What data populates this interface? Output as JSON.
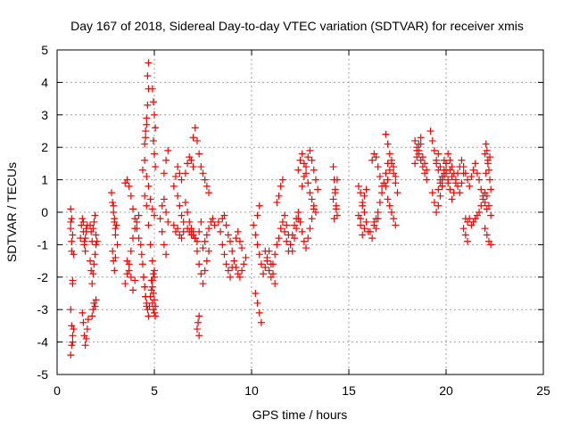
{
  "chart_data": {
    "type": "scatter",
    "title": "Day 167 of 2018, Sidereal Day-to-day VTEC variation (SDTVAR) for receiver xmis",
    "xlabel": "GPS time / hours",
    "ylabel": "SDTVAR / TECUs",
    "xlim": [
      0,
      25
    ],
    "ylim": [
      -5,
      5
    ],
    "xticks": [
      0,
      5,
      10,
      15,
      20,
      25
    ],
    "yticks": [
      -5,
      -4,
      -3,
      -2,
      -1,
      0,
      1,
      2,
      3,
      4,
      5
    ],
    "grid": true,
    "marker": "+",
    "color": "#ff0000",
    "series": [
      {
        "name": "SDTVAR",
        "x": [
          0.7,
          0.7,
          0.75,
          0.75,
          0.8,
          0.8,
          0.7,
          0.75,
          0.8,
          0.7,
          0.75,
          0.8,
          0.85,
          0.7,
          0.75,
          0.8,
          0.85,
          1.2,
          1.25,
          1.3,
          1.35,
          1.4,
          1.45,
          1.5,
          1.3,
          1.35,
          1.4,
          1.45,
          1.5,
          1.55,
          1.6,
          1.35,
          1.4,
          1.45,
          1.5,
          1.55,
          1.7,
          1.75,
          1.8,
          1.85,
          1.9,
          1.95,
          2.0,
          1.8,
          1.85,
          1.9,
          1.95,
          2.0,
          1.7,
          1.75,
          1.8,
          1.85,
          1.9,
          1.95,
          2.0,
          2.05,
          2.8,
          2.85,
          2.9,
          2.95,
          3.0,
          2.85,
          2.9,
          2.95,
          3.0,
          3.1,
          2.9,
          2.95,
          3.0,
          3.05,
          3.5,
          3.6,
          3.7,
          3.8,
          3.9,
          4.0,
          4.1,
          4.2,
          3.6,
          3.7,
          3.8,
          3.9,
          4.0,
          3.5,
          3.6,
          3.7,
          3.8,
          3.9,
          4.0,
          4.1,
          4.2,
          4.3,
          4.35,
          4.4,
          4.45,
          4.5,
          4.55,
          4.6,
          4.65,
          4.7,
          4.75,
          4.8,
          4.85,
          4.9,
          4.95,
          5.0,
          4.4,
          4.5,
          4.6,
          4.7,
          4.8,
          4.9,
          5.0,
          4.55,
          4.6,
          4.65,
          4.7,
          4.5,
          4.55,
          4.6,
          4.65,
          4.7,
          4.5,
          4.6,
          4.7,
          4.8,
          4.9,
          5.0,
          4.45,
          4.5,
          4.55,
          4.6,
          4.9,
          4.95,
          5.0,
          5.05,
          4.95,
          5.0,
          5.05,
          4.9,
          4.95,
          5.0,
          5.05,
          4.85,
          4.9,
          4.95,
          5.0,
          5.05,
          5.3,
          5.4,
          5.5,
          5.6,
          5.7,
          5.5,
          5.6,
          5.7,
          5.4,
          5.5,
          5.6,
          6.0,
          6.1,
          6.2,
          6.3,
          6.4,
          6.2,
          6.3,
          6.4,
          6.5,
          6.0,
          6.1,
          6.2,
          6.3,
          6.4,
          6.5,
          6.6,
          6.7,
          6.8,
          6.9,
          7.0,
          6.7,
          6.8,
          6.9,
          7.0,
          7.1,
          6.6,
          6.7,
          6.8,
          6.9,
          7.0,
          7.1,
          7.0,
          7.1,
          7.2,
          7.3,
          7.4,
          7.5,
          7.6,
          7.7,
          7.8,
          7.1,
          7.2,
          7.3,
          7.4,
          7.5,
          7.6,
          7.7,
          7.8,
          7.2,
          7.3,
          7.4,
          7.2,
          7.3,
          7.25,
          7.3,
          7.5,
          7.6,
          7.7,
          7.8,
          7.9,
          8.0,
          8.1,
          8.3,
          8.4,
          8.5,
          8.6,
          8.7,
          8.8,
          8.9,
          9.0,
          8.5,
          8.6,
          8.7,
          8.8,
          8.9,
          9.0,
          9.1,
          9.2,
          9.3,
          9.4,
          9.5,
          9.6,
          9.7,
          9.2,
          9.3,
          9.4,
          9.5,
          10.1,
          10.2,
          10.3,
          10.4,
          10.5,
          10.6,
          10.7,
          10.8,
          10.9,
          11.0,
          11.1,
          11.2,
          10.2,
          10.3,
          10.4,
          10.5,
          10.3,
          10.4,
          10.7,
          10.8,
          10.9,
          11.0,
          11.1,
          11.2,
          11.3,
          11.4,
          11.5,
          11.6,
          11.7,
          11.8,
          11.9,
          12.0,
          12.1,
          12.2,
          12.3,
          12.4,
          11.3,
          11.4,
          11.5,
          11.6,
          11.7,
          11.8,
          11.9,
          12.0,
          12.1,
          12.2,
          12.3,
          12.4,
          12.4,
          12.5,
          12.6,
          12.7,
          12.8,
          12.9,
          13.0,
          13.1,
          13.2,
          13.3,
          12.5,
          12.6,
          12.7,
          12.8,
          12.9,
          13.0,
          13.1,
          13.2,
          12.6,
          12.7,
          12.8,
          12.9,
          13.0,
          13.1,
          13.2,
          13.3,
          13.4,
          14.2,
          14.25,
          14.3,
          14.35,
          14.4,
          14.2,
          14.3,
          14.4,
          14.25,
          14.35,
          15.5,
          15.6,
          15.7,
          15.8,
          15.9,
          16.0,
          15.6,
          15.7,
          15.8,
          15.9,
          15.5,
          15.6,
          15.7,
          15.8,
          16.1,
          16.2,
          16.3,
          16.4,
          16.5,
          16.6,
          16.7,
          16.8,
          16.9,
          17.0,
          16.2,
          16.3,
          16.4,
          16.5,
          16.6,
          16.7,
          16.3,
          16.4,
          16.5,
          16.9,
          17.0,
          17.1,
          17.2,
          17.3,
          17.4,
          17.5,
          17.0,
          17.1,
          17.2,
          17.3,
          17.4,
          16.9,
          17.0,
          17.1,
          17.2,
          17.3,
          17.4,
          18.4,
          18.5,
          18.6,
          18.7,
          18.8,
          18.9,
          19.0,
          18.5,
          18.6,
          18.7,
          18.8,
          18.9,
          19.0,
          18.4,
          18.5,
          18.6,
          18.7,
          19.2,
          19.3,
          19.4,
          19.5,
          19.6,
          19.7,
          19.8,
          19.9,
          20.0,
          20.1,
          20.2,
          20.3,
          20.4,
          20.5,
          20.6,
          20.7,
          20.8,
          20.9,
          19.3,
          19.4,
          19.5,
          19.6,
          19.7,
          19.8,
          19.9,
          20.0,
          20.1,
          20.2,
          20.3,
          20.4,
          20.5,
          20.6,
          20.7,
          19.5,
          19.6,
          19.7,
          19.8,
          19.9,
          20.0,
          20.1,
          20.2,
          20.3,
          19.6,
          19.7,
          19.8,
          19.9,
          20.0,
          20.8,
          20.9,
          21.0,
          21.1,
          21.2,
          21.3,
          21.4,
          21.5,
          21.6,
          21.7,
          21.8,
          21.9,
          22.0,
          22.1,
          21.0,
          21.1,
          21.2,
          21.3,
          21.4,
          21.5,
          21.6,
          21.7,
          21.8,
          21.9,
          22.0,
          20.9,
          21.0,
          21.1,
          22.0,
          22.05,
          22.1,
          22.15,
          22.2,
          22.25,
          22.3,
          22.0,
          22.1,
          22.2,
          22.3,
          22.1,
          22.2,
          22.3,
          22.05,
          22.15,
          22.25
        ],
        "y": [
          0.1,
          -0.3,
          -0.9,
          -1.2,
          -2.1,
          -2.2,
          -3.0,
          -3.5,
          -4.0,
          -4.4,
          -4.1,
          -3.8,
          -3.6,
          -0.5,
          -0.2,
          -0.7,
          -1.3,
          -0.8,
          -0.4,
          -0.2,
          -0.6,
          -1.0,
          -0.8,
          -0.5,
          -3.1,
          -3.4,
          -3.8,
          -4.1,
          -3.9,
          -3.6,
          -3.3,
          -0.3,
          -0.9,
          -1.2,
          -0.6,
          -0.4,
          -1.5,
          -1.8,
          -2.2,
          -1.9,
          -1.6,
          -1.3,
          -1.0,
          -3.2,
          -3.0,
          -2.8,
          -2.9,
          -2.7,
          -0.4,
          -0.6,
          -0.9,
          -0.5,
          -0.3,
          -0.1,
          -0.7,
          -0.9,
          0.6,
          0.3,
          0.0,
          -0.3,
          -0.7,
          -1.2,
          -1.5,
          -1.8,
          -1.4,
          -1.0,
          0.2,
          -0.2,
          -0.5,
          -0.4,
          0.9,
          1.0,
          0.8,
          0.5,
          0.1,
          -0.2,
          -0.5,
          -0.8,
          -1.5,
          -1.8,
          -2.0,
          -2.4,
          -2.1,
          -2.2,
          -1.9,
          -1.6,
          -1.2,
          -0.8,
          -0.5,
          -0.3,
          -0.1,
          -1.0,
          -1.3,
          -1.6,
          -2.0,
          -2.3,
          -2.6,
          -2.8,
          -3.0,
          -3.2,
          -2.9,
          -2.6,
          -2.4,
          -2.1,
          -1.9,
          -1.8,
          1.3,
          1.6,
          1.1,
          0.8,
          0.4,
          0.1,
          -0.1,
          2.5,
          2.9,
          3.3,
          3.8,
          2.1,
          2.3,
          2.7,
          4.2,
          4.6,
          0.5,
          0.2,
          -0.4,
          -1.0,
          -1.5,
          -2.0,
          -2.0,
          -2.3,
          -2.6,
          -2.9,
          3.8,
          3.4,
          3.0,
          2.6,
          2.2,
          1.8,
          1.4,
          -2.8,
          -3.0,
          -3.1,
          -3.2,
          -2.1,
          -2.3,
          -2.5,
          -2.7,
          -2.9,
          -0.2,
          0.2,
          0.4,
          0.0,
          -0.3,
          1.2,
          1.6,
          1.9,
          -0.6,
          -1.0,
          -1.3,
          0.8,
          1.1,
          1.4,
          1.2,
          1.0,
          0.5,
          0.2,
          -0.1,
          -0.3,
          -0.4,
          -0.6,
          -0.5,
          -0.7,
          -0.8,
          -0.6,
          1.2,
          1.5,
          1.7,
          1.6,
          1.4,
          -0.5,
          -0.6,
          -0.7,
          -0.6,
          -0.8,
          0.3,
          0.0,
          -0.3,
          -0.5,
          -0.7,
          -0.8,
          2.3,
          2.6,
          2.2,
          1.8,
          1.4,
          1.2,
          1.0,
          0.8,
          0.6,
          -0.8,
          -1.2,
          -1.6,
          -1.9,
          -2.2,
          -1.8,
          -1.5,
          -1.2,
          -0.9,
          -0.6,
          -0.3,
          -3.6,
          -3.8,
          -3.4,
          -3.2,
          -1.1,
          -0.9,
          -0.7,
          -0.5,
          -0.3,
          -0.2,
          -0.4,
          -0.3,
          -0.6,
          -1.0,
          -1.3,
          -1.6,
          -1.8,
          -2.0,
          -1.7,
          -0.2,
          -0.1,
          -0.4,
          -0.7,
          -0.9,
          -1.2,
          -1.5,
          -1.7,
          -1.9,
          -2.0,
          -1.8,
          -1.6,
          -1.4,
          -0.8,
          -0.6,
          -0.9,
          -1.1,
          -0.4,
          -0.7,
          -1.0,
          -1.3,
          -1.6,
          -1.9,
          -1.7,
          -1.4,
          -1.2,
          -1.6,
          -1.9,
          -2.2,
          -2.5,
          -2.8,
          -3.1,
          -3.4,
          -0.1,
          0.2,
          -1.2,
          -1.5,
          -1.8,
          -2.0,
          -1.6,
          -1.3,
          -1.0,
          -0.8,
          -0.5,
          -0.3,
          -0.6,
          -0.9,
          -1.2,
          -1.0,
          -0.7,
          -0.4,
          -0.2,
          0.0,
          0.3,
          0.5,
          0.8,
          1.0,
          -0.1,
          -0.4,
          -0.7,
          -1.0,
          -1.2,
          -0.8,
          -0.5,
          -0.2,
          1.3,
          1.6,
          1.8,
          1.5,
          1.2,
          0.9,
          0.6,
          0.4,
          0.2,
          0.0,
          -0.3,
          -0.6,
          -0.9,
          -1.1,
          -0.8,
          -0.5,
          -0.2,
          0.1,
          0.8,
          1.1,
          1.4,
          1.7,
          1.9,
          1.6,
          1.3,
          1.0,
          0.7,
          1.4,
          1.0,
          0.6,
          0.2,
          -0.1,
          0.4,
          0.7,
          1.0,
          -0.2,
          0.1,
          0.8,
          0.6,
          0.3,
          0.0,
          -0.3,
          -0.6,
          -0.2,
          0.2,
          0.5,
          0.7,
          -0.1,
          -0.4,
          -0.7,
          -0.5,
          -0.6,
          -0.8,
          -0.4,
          -0.2,
          0.0,
          0.3,
          0.6,
          0.9,
          1.2,
          1.5,
          1.6,
          1.8,
          1.7,
          1.4,
          1.1,
          0.8,
          -0.3,
          -0.5,
          -0.2,
          2.4,
          2.1,
          1.8,
          1.5,
          1.2,
          0.9,
          0.6,
          0.4,
          0.2,
          0.0,
          -0.2,
          -0.4,
          0.8,
          1.0,
          1.3,
          1.6,
          1.4,
          1.1,
          2.2,
          2.0,
          1.8,
          1.6,
          1.4,
          1.2,
          1.0,
          1.9,
          2.1,
          2.3,
          1.7,
          1.5,
          1.3,
          1.5,
          1.7,
          1.9,
          2.1,
          2.5,
          2.2,
          1.9,
          1.6,
          1.3,
          1.0,
          0.8,
          1.2,
          1.5,
          1.8,
          1.6,
          1.4,
          1.2,
          1.0,
          0.8,
          0.6,
          0.9,
          1.2,
          0.6,
          0.3,
          0.0,
          0.2,
          0.5,
          0.8,
          1.1,
          1.3,
          1.0,
          0.7,
          0.4,
          0.6,
          0.9,
          1.2,
          1.4,
          1.5,
          1.8,
          1.4,
          1.0,
          1.6,
          1.2,
          0.9,
          1.3,
          1.1,
          0.7,
          0.9,
          1.1,
          1.3,
          1.5,
          1.6,
          1.4,
          1.2,
          1.0,
          0.8,
          1.1,
          1.3,
          1.5,
          1.2,
          1.0,
          0.7,
          0.5,
          0.3,
          0.1,
          -0.2,
          -0.3,
          -0.2,
          -0.4,
          -0.3,
          -0.2,
          -0.1,
          0.0,
          0.2,
          0.4,
          0.6,
          -0.5,
          -0.7,
          -0.9,
          1.8,
          2.1,
          1.9,
          1.6,
          1.3,
          1.0,
          0.7,
          -0.5,
          -0.7,
          -0.9,
          -1.0,
          0.5,
          0.2,
          -0.1,
          1.2,
          1.5,
          1.7
        ]
      }
    ]
  }
}
